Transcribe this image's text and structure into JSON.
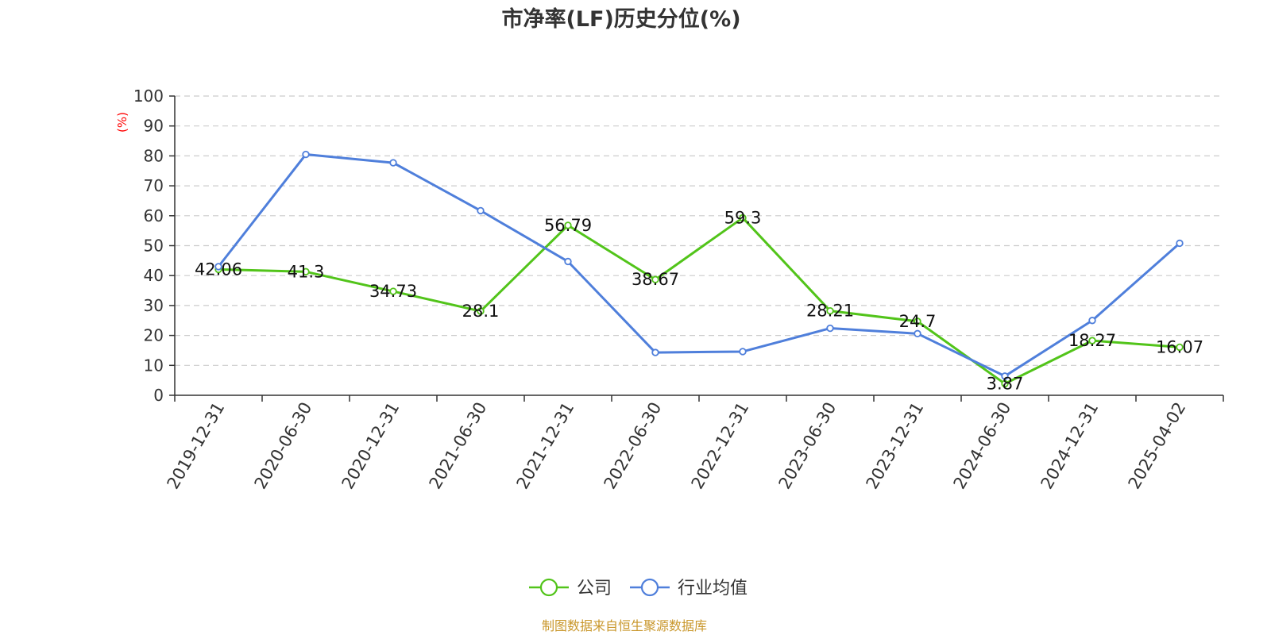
{
  "chart_data": {
    "type": "line",
    "title": "市净率(LF)历史分位(%)",
    "ylabel": "(%)",
    "xlabel": "",
    "ylim": [
      0,
      100
    ],
    "yticks": [
      "0",
      "10",
      "20",
      "30",
      "40",
      "50",
      "60",
      "70",
      "80",
      "90",
      "100"
    ],
    "categories": [
      "2019-12-31",
      "2020-06-30",
      "2020-12-31",
      "2021-06-30",
      "2021-12-31",
      "2022-06-30",
      "2022-12-31",
      "2023-06-30",
      "2023-12-31",
      "2024-06-30",
      "2024-12-31",
      "2025-04-02"
    ],
    "grid": true,
    "legend_position": "bottom",
    "series": [
      {
        "name": "公司",
        "color": "#52c41a",
        "values": [
          42.06,
          41.3,
          34.73,
          28.1,
          56.79,
          38.67,
          59.3,
          28.21,
          24.7,
          3.87,
          18.27,
          16.07
        ],
        "labels": [
          "42.06",
          "41.3",
          "34.73",
          "28.1",
          "56.79",
          "38.67",
          "59.3",
          "28.21",
          "24.7",
          "3.87",
          "18.27",
          "16.07"
        ]
      },
      {
        "name": "行业均值",
        "color": "#4f7fdb",
        "values": [
          43,
          80.5,
          77.7,
          61.7,
          44.7,
          14.3,
          14.6,
          22.4,
          20.6,
          6.4,
          25,
          50.8
        ]
      }
    ]
  },
  "source_text": "制图数据来自恒生聚源数据库",
  "colors": {
    "ylabel": "#ff0000",
    "source": "#c9972b",
    "grid": "#cccccc",
    "axis": "#333333"
  }
}
